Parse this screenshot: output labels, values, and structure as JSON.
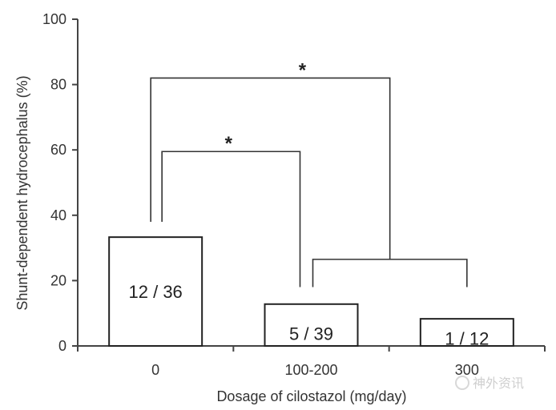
{
  "chart_data": {
    "type": "bar",
    "categories": [
      "0",
      "100-200",
      "300"
    ],
    "values": [
      33.3,
      12.8,
      8.3
    ],
    "bar_labels": [
      "12 / 36",
      "5 / 39",
      "1 / 12"
    ],
    "xlabel": "Dosage of cilostazol (mg/day)",
    "ylabel": "Shunt-dependent hydrocephalus (%)",
    "ylim": [
      0,
      100
    ],
    "yticks": [
      "0",
      "20",
      "40",
      "60",
      "80",
      "100"
    ],
    "grid": false,
    "significance": [
      {
        "between": "0 vs 100-200",
        "marker": "*"
      },
      {
        "between": "0 vs 100-300",
        "marker": "*"
      }
    ],
    "colors": {
      "bar_fill": "#ffffff",
      "bar_stroke": "#222222",
      "axis": "#444444"
    }
  },
  "watermark": "神外资讯"
}
